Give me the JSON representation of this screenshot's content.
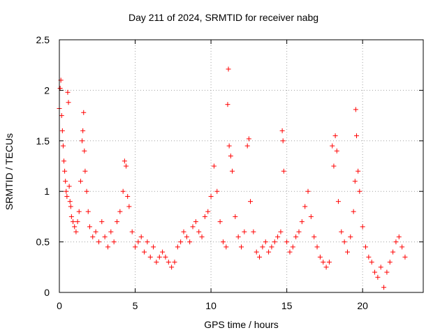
{
  "chart_data": {
    "type": "scatter",
    "title": "Day 211 of 2024, SRMTID for receiver nabg",
    "xlabel": "GPS time / hours",
    "ylabel": "SRMTID / TECUs",
    "xlim": [
      0,
      24
    ],
    "ylim": [
      0,
      2.5
    ],
    "xticks": [
      0,
      5,
      10,
      15,
      20
    ],
    "xtick_labels": [
      "0",
      "5",
      "10",
      "15",
      "20"
    ],
    "yticks": [
      0,
      0.5,
      1,
      1.5,
      2,
      2.5
    ],
    "ytick_labels": [
      "0",
      "0.5",
      "1",
      "1.5",
      "2",
      "2.5"
    ],
    "grid": true,
    "marker": "+",
    "color": "#ff0000",
    "series": [
      {
        "name": "SRMTID",
        "x": [
          0.0,
          0.05,
          0.1,
          0.15,
          0.2,
          0.25,
          0.3,
          0.35,
          0.4,
          0.45,
          0.5,
          0.55,
          0.6,
          0.65,
          0.7,
          0.75,
          0.8,
          0.9,
          1.0,
          1.1,
          1.2,
          1.3,
          1.4,
          1.5,
          1.55,
          1.6,
          1.65,
          1.7,
          1.8,
          1.9,
          2.0,
          2.2,
          2.4,
          2.6,
          2.8,
          3.0,
          3.2,
          3.4,
          3.6,
          3.8,
          4.0,
          4.2,
          4.3,
          4.4,
          4.5,
          4.6,
          4.8,
          5.0,
          5.2,
          5.4,
          5.6,
          5.8,
          6.0,
          6.2,
          6.4,
          6.6,
          6.8,
          7.0,
          7.2,
          7.4,
          7.6,
          7.8,
          8.0,
          8.2,
          8.4,
          8.6,
          8.8,
          9.0,
          9.2,
          9.4,
          9.6,
          9.8,
          10.0,
          10.2,
          10.4,
          10.6,
          10.8,
          11.0,
          11.1,
          11.15,
          11.2,
          11.3,
          11.4,
          11.6,
          11.8,
          12.0,
          12.2,
          12.4,
          12.5,
          12.6,
          12.8,
          13.0,
          13.2,
          13.4,
          13.6,
          13.8,
          14.0,
          14.2,
          14.4,
          14.6,
          14.7,
          14.75,
          14.8,
          15.0,
          15.2,
          15.4,
          15.6,
          15.8,
          16.0,
          16.2,
          16.4,
          16.6,
          16.8,
          17.0,
          17.2,
          17.4,
          17.6,
          17.8,
          18.0,
          18.1,
          18.2,
          18.3,
          18.4,
          18.6,
          18.8,
          19.0,
          19.2,
          19.4,
          19.5,
          19.55,
          19.6,
          19.7,
          19.8,
          20.0,
          20.2,
          20.4,
          20.6,
          20.8,
          21.0,
          21.2,
          21.4,
          21.6,
          21.8,
          22.0,
          22.2,
          22.4,
          22.6,
          22.8
        ],
        "y": [
          1.82,
          2.02,
          2.1,
          1.75,
          1.6,
          1.45,
          1.3,
          1.2,
          1.1,
          1.0,
          0.95,
          1.98,
          1.88,
          1.05,
          0.9,
          0.85,
          0.75,
          0.7,
          0.65,
          0.6,
          0.7,
          0.8,
          1.1,
          1.5,
          1.6,
          1.78,
          1.4,
          1.2,
          1.0,
          0.8,
          0.65,
          0.55,
          0.6,
          0.5,
          0.7,
          0.55,
          0.45,
          0.6,
          0.5,
          0.7,
          0.8,
          1.0,
          1.3,
          1.25,
          0.95,
          0.85,
          0.6,
          0.45,
          0.5,
          0.55,
          0.4,
          0.5,
          0.35,
          0.45,
          0.3,
          0.35,
          0.4,
          0.35,
          0.3,
          0.25,
          0.3,
          0.45,
          0.5,
          0.6,
          0.55,
          0.5,
          0.65,
          0.7,
          0.6,
          0.55,
          0.75,
          0.8,
          0.95,
          1.25,
          1.0,
          0.7,
          0.5,
          0.45,
          1.86,
          2.21,
          1.45,
          1.35,
          1.2,
          0.75,
          0.55,
          0.45,
          0.6,
          1.45,
          1.52,
          0.9,
          0.6,
          0.4,
          0.35,
          0.45,
          0.5,
          0.4,
          0.45,
          0.5,
          0.55,
          0.6,
          1.6,
          1.5,
          1.2,
          0.5,
          0.4,
          0.45,
          0.55,
          0.6,
          0.7,
          0.85,
          1.0,
          0.75,
          0.55,
          0.45,
          0.35,
          0.3,
          0.25,
          0.3,
          1.45,
          1.25,
          1.55,
          1.4,
          0.9,
          0.6,
          0.5,
          0.4,
          0.55,
          0.8,
          1.1,
          1.81,
          1.55,
          1.2,
          1.0,
          0.65,
          0.45,
          0.35,
          0.3,
          0.2,
          0.15,
          0.25,
          0.05,
          0.2,
          0.3,
          0.4,
          0.5,
          0.55,
          0.45,
          0.35
        ]
      }
    ]
  }
}
